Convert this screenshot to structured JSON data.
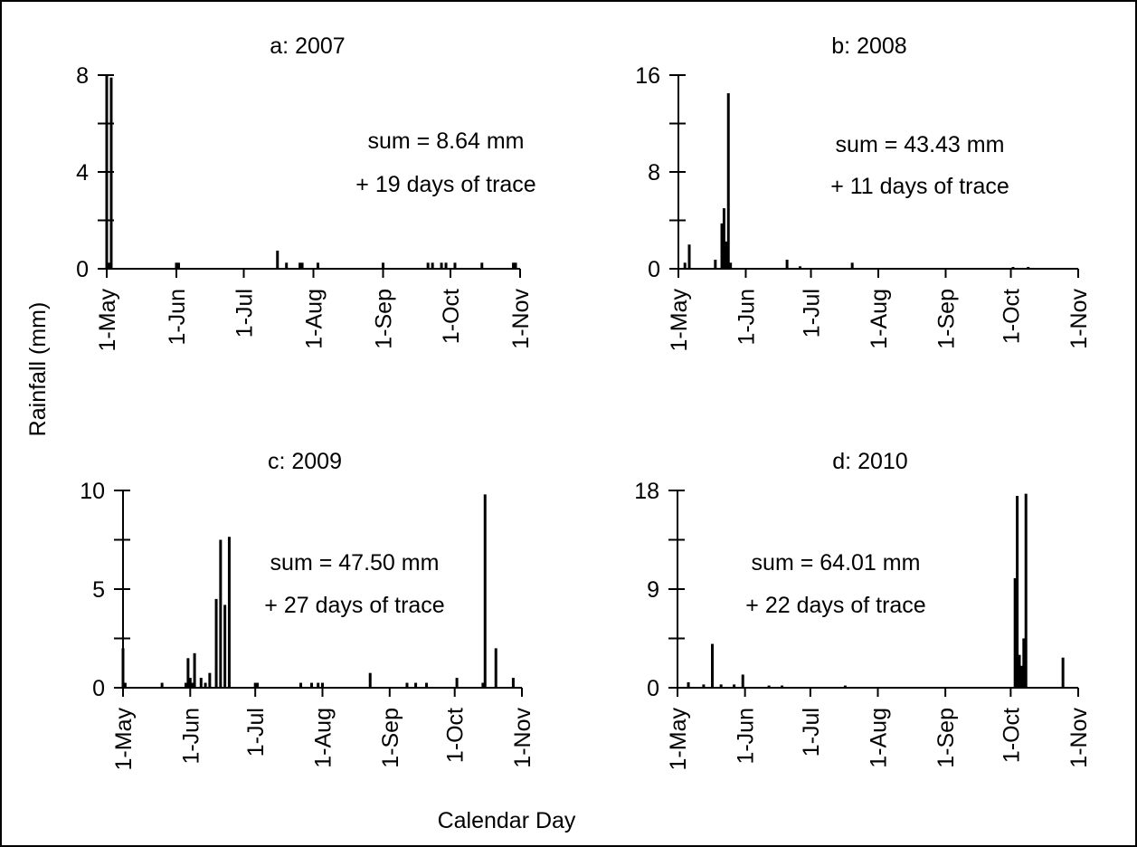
{
  "figure": {
    "ylabel": "Rainfall (mm)",
    "xlabel": "Calendar Day"
  },
  "chart_data": [
    {
      "type": "bar",
      "title": "a: 2007",
      "ylim": [
        0,
        8
      ],
      "yticks": [
        0,
        4,
        8
      ],
      "xticks": [
        "1-May",
        "1-Jun",
        "1-Jul",
        "1-Aug",
        "1-Sep",
        "1-Oct",
        "1-Nov"
      ],
      "annotation": [
        "sum = 8.64 mm",
        "+ 19 days of trace"
      ],
      "bars": [
        {
          "date": "2007-05-01",
          "value": 8.0
        },
        {
          "date": "2007-05-02",
          "value": 0.25
        },
        {
          "date": "2007-05-03",
          "value": 7.9
        },
        {
          "date": "2007-06-01",
          "value": 0.25
        },
        {
          "date": "2007-06-02",
          "value": 0.25
        },
        {
          "date": "2007-07-16",
          "value": 0.75
        },
        {
          "date": "2007-07-20",
          "value": 0.25
        },
        {
          "date": "2007-07-26",
          "value": 0.25
        },
        {
          "date": "2007-07-27",
          "value": 0.25
        },
        {
          "date": "2007-08-03",
          "value": 0.25
        },
        {
          "date": "2007-09-01",
          "value": 0.25
        },
        {
          "date": "2007-09-21",
          "value": 0.25
        },
        {
          "date": "2007-09-23",
          "value": 0.25
        },
        {
          "date": "2007-09-27",
          "value": 0.25
        },
        {
          "date": "2007-09-29",
          "value": 0.25
        },
        {
          "date": "2007-10-03",
          "value": 0.25
        },
        {
          "date": "2007-10-15",
          "value": 0.25
        },
        {
          "date": "2007-10-29",
          "value": 0.25
        },
        {
          "date": "2007-10-30",
          "value": 0.25
        }
      ]
    },
    {
      "type": "bar",
      "title": "b: 2008",
      "ylim": [
        0,
        16
      ],
      "yticks": [
        0,
        8,
        16
      ],
      "xticks": [
        "1-May",
        "1-Jun",
        "1-Jul",
        "1-Aug",
        "1-Sep",
        "1-Oct",
        "1-Nov"
      ],
      "annotation": [
        "sum = 43.43 mm",
        "+ 11 days of trace"
      ],
      "bars": [
        {
          "date": "2008-05-04",
          "value": 0.5
        },
        {
          "date": "2008-05-06",
          "value": 2.0
        },
        {
          "date": "2008-05-18",
          "value": 0.75
        },
        {
          "date": "2008-05-21",
          "value": 3.75
        },
        {
          "date": "2008-05-22",
          "value": 5.0
        },
        {
          "date": "2008-05-23",
          "value": 2.25
        },
        {
          "date": "2008-05-24",
          "value": 14.5
        },
        {
          "date": "2008-05-25",
          "value": 0.5
        },
        {
          "date": "2008-06-20",
          "value": 0.75
        },
        {
          "date": "2008-06-26",
          "value": 0.2
        },
        {
          "date": "2008-07-20",
          "value": 0.5
        },
        {
          "date": "2008-10-02",
          "value": 0.15
        },
        {
          "date": "2008-10-09",
          "value": 0.15
        }
      ]
    },
    {
      "type": "bar",
      "title": "c: 2009",
      "ylim": [
        0,
        10
      ],
      "yticks": [
        0,
        5,
        10
      ],
      "xticks": [
        "1-May",
        "1-Jun",
        "1-Jul",
        "1-Aug",
        "1-Sep",
        "1-Oct",
        "1-Nov"
      ],
      "annotation": [
        "sum = 47.50 mm",
        "+ 27 days of trace"
      ],
      "bars": [
        {
          "date": "2009-05-01",
          "value": 2.0
        },
        {
          "date": "2009-05-02",
          "value": 0.25
        },
        {
          "date": "2009-05-19",
          "value": 0.25
        },
        {
          "date": "2009-05-30",
          "value": 0.25
        },
        {
          "date": "2009-05-31",
          "value": 1.5
        },
        {
          "date": "2009-06-01",
          "value": 0.5
        },
        {
          "date": "2009-06-02",
          "value": 0.25
        },
        {
          "date": "2009-06-03",
          "value": 1.75
        },
        {
          "date": "2009-06-06",
          "value": 0.5
        },
        {
          "date": "2009-06-08",
          "value": 0.25
        },
        {
          "date": "2009-06-10",
          "value": 0.75
        },
        {
          "date": "2009-06-13",
          "value": 4.5
        },
        {
          "date": "2009-06-15",
          "value": 7.5
        },
        {
          "date": "2009-06-17",
          "value": 4.2
        },
        {
          "date": "2009-06-19",
          "value": 7.65
        },
        {
          "date": "2009-07-01",
          "value": 0.25
        },
        {
          "date": "2009-07-02",
          "value": 0.25
        },
        {
          "date": "2009-07-22",
          "value": 0.25
        },
        {
          "date": "2009-07-27",
          "value": 0.25
        },
        {
          "date": "2009-07-30",
          "value": 0.25
        },
        {
          "date": "2009-08-01",
          "value": 0.25
        },
        {
          "date": "2009-08-23",
          "value": 0.75
        },
        {
          "date": "2009-09-09",
          "value": 0.25
        },
        {
          "date": "2009-09-13",
          "value": 0.25
        },
        {
          "date": "2009-09-18",
          "value": 0.25
        },
        {
          "date": "2009-10-02",
          "value": 0.5
        },
        {
          "date": "2009-10-14",
          "value": 0.25
        },
        {
          "date": "2009-10-15",
          "value": 9.8
        },
        {
          "date": "2009-10-20",
          "value": 2.0
        },
        {
          "date": "2009-10-28",
          "value": 0.5
        }
      ]
    },
    {
      "type": "bar",
      "title": "d: 2010",
      "ylim": [
        0,
        18
      ],
      "yticks": [
        0,
        9,
        18
      ],
      "xticks": [
        "1-May",
        "1-Jun",
        "1-Jul",
        "1-Aug",
        "1-Sep",
        "1-Oct",
        "1-Nov"
      ],
      "annotation": [
        "sum = 64.01 mm",
        "+ 22 days of trace"
      ],
      "bars": [
        {
          "date": "2010-05-06",
          "value": 0.5
        },
        {
          "date": "2010-05-13",
          "value": 0.3
        },
        {
          "date": "2010-05-17",
          "value": 4.0
        },
        {
          "date": "2010-05-21",
          "value": 0.3
        },
        {
          "date": "2010-05-27",
          "value": 0.3
        },
        {
          "date": "2010-05-31",
          "value": 1.2
        },
        {
          "date": "2010-06-12",
          "value": 0.2
        },
        {
          "date": "2010-06-18",
          "value": 0.2
        },
        {
          "date": "2010-07-17",
          "value": 0.2
        },
        {
          "date": "2010-10-03",
          "value": 10.0
        },
        {
          "date": "2010-10-04",
          "value": 17.5
        },
        {
          "date": "2010-10-05",
          "value": 3.0
        },
        {
          "date": "2010-10-06",
          "value": 2.0
        },
        {
          "date": "2010-10-07",
          "value": 4.5
        },
        {
          "date": "2010-10-08",
          "value": 17.7
        },
        {
          "date": "2010-10-25",
          "value": 2.75
        }
      ]
    }
  ]
}
